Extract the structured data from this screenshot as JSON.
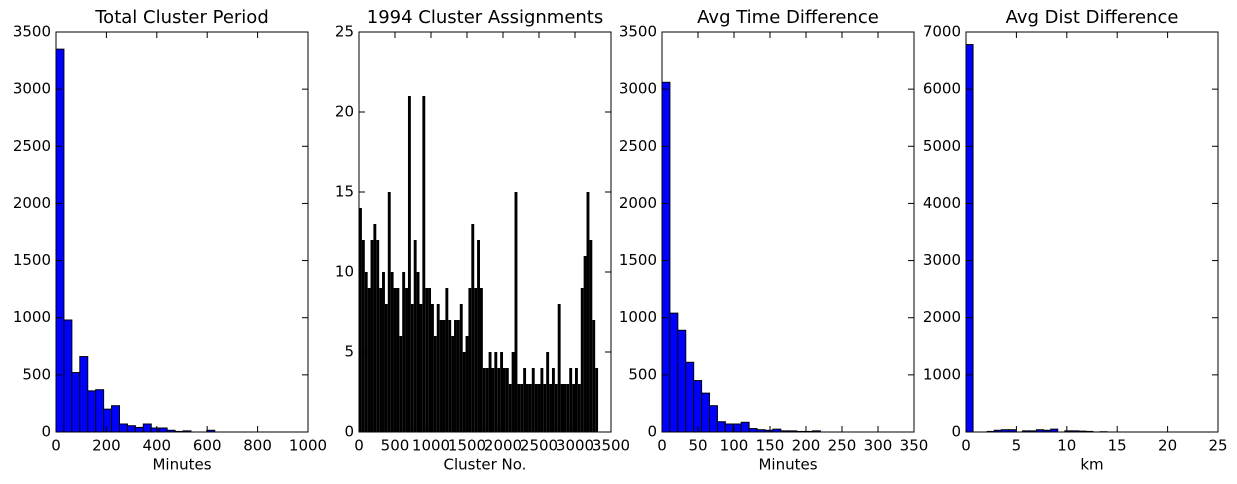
{
  "chart_data": [
    {
      "type": "histogram",
      "title": "Total Cluster Period",
      "x_label": "Minutes",
      "color": "#0000ff",
      "bins": [
        0,
        31.5,
        63,
        94.5,
        126,
        157.5,
        189,
        220.5,
        252,
        283.5,
        315,
        346.5,
        378,
        409.5,
        441,
        472.5,
        504,
        535.5,
        567,
        598.5,
        630
      ],
      "values": [
        3350,
        980,
        520,
        660,
        360,
        370,
        200,
        230,
        70,
        55,
        40,
        70,
        35,
        35,
        15,
        5,
        10,
        0,
        0,
        15
      ],
      "xlim": [
        0,
        1000
      ],
      "xticks": [
        0,
        200,
        400,
        600,
        800,
        1000
      ],
      "ylim": [
        0,
        3500
      ],
      "yticks": [
        0,
        500,
        1000,
        1500,
        2000,
        2500,
        3000,
        3500
      ]
    },
    {
      "type": "bar",
      "title": "1994 Cluster Assignments",
      "x_label": "Cluster No.",
      "color": "#000000",
      "x": [
        0,
        40,
        80,
        120,
        160,
        200,
        240,
        280,
        320,
        360,
        400,
        440,
        480,
        520,
        560,
        600,
        640,
        680,
        720,
        760,
        800,
        840,
        880,
        920,
        960,
        1000,
        1040,
        1080,
        1120,
        1160,
        1200,
        1240,
        1280,
        1320,
        1360,
        1400,
        1440,
        1480,
        1520,
        1560,
        1600,
        1640,
        1680,
        1720,
        1760,
        1800,
        1840,
        1880,
        1920,
        1960,
        2000,
        2040,
        2080,
        2120,
        2160,
        2200,
        2240,
        2280,
        2320,
        2360,
        2400,
        2440,
        2480,
        2520,
        2560,
        2600,
        2640,
        2680,
        2720,
        2760,
        2800,
        2840,
        2880,
        2920,
        2960,
        3000,
        3040,
        3080,
        3120,
        3160,
        3200,
        3240,
        3280
      ],
      "values": [
        14,
        12,
        10,
        9,
        12,
        13,
        12,
        9,
        10,
        8,
        15,
        10,
        9,
        9,
        6,
        10,
        9,
        21,
        8,
        12,
        10,
        8,
        21,
        9,
        9,
        8,
        6,
        8,
        7,
        7,
        9,
        7,
        6,
        7,
        7,
        8,
        5,
        6,
        9,
        13,
        9,
        12,
        9,
        4,
        4,
        5,
        4,
        5,
        4,
        5,
        4,
        4,
        3,
        5,
        15,
        3,
        3,
        4,
        3,
        3,
        4,
        3,
        3,
        4,
        3,
        5,
        3,
        4,
        3,
        8,
        3,
        3,
        3,
        4,
        3,
        4,
        3,
        9,
        11,
        15,
        12,
        7,
        4
      ],
      "xlim": [
        0,
        3500
      ],
      "xticks": [
        0,
        500,
        1000,
        1500,
        2000,
        2500,
        3000,
        3500
      ],
      "ylim": [
        0,
        25
      ],
      "yticks": [
        0,
        5,
        10,
        15,
        20,
        25
      ]
    },
    {
      "type": "histogram",
      "title": "Avg Time Difference",
      "x_label": "Minutes",
      "color": "#0000ff",
      "bins": [
        0,
        11,
        22,
        33,
        44,
        55,
        66,
        77,
        88,
        99,
        110,
        121,
        132,
        143,
        154,
        165,
        176,
        187,
        198,
        209,
        220
      ],
      "values": [
        3060,
        1040,
        890,
        610,
        450,
        340,
        230,
        90,
        70,
        70,
        85,
        30,
        20,
        15,
        25,
        10,
        10,
        5,
        5,
        10
      ],
      "xlim": [
        0,
        350
      ],
      "xticks": [
        0,
        50,
        100,
        150,
        200,
        250,
        300,
        350
      ],
      "ylim": [
        0,
        3500
      ],
      "yticks": [
        0,
        500,
        1000,
        1500,
        2000,
        2500,
        3000,
        3500
      ]
    },
    {
      "type": "histogram",
      "title": "Avg Dist Difference",
      "x_label": "km",
      "color": "#0000ff",
      "bins": [
        0,
        0.7,
        1.4,
        2.1,
        2.8,
        3.5,
        4.2,
        4.9,
        5.6,
        6.3,
        7,
        7.7,
        8.4,
        9.1,
        9.8,
        10.5,
        11.2,
        11.9,
        12.6,
        13.3,
        14
      ],
      "values": [
        6780,
        0,
        0,
        10,
        30,
        40,
        40,
        0,
        20,
        20,
        40,
        30,
        50,
        0,
        20,
        20,
        15,
        10,
        0,
        5
      ],
      "xlim": [
        0,
        25
      ],
      "xticks": [
        0,
        5,
        10,
        15,
        20,
        25
      ],
      "ylim": [
        0,
        7000
      ],
      "yticks": [
        0,
        1000,
        2000,
        3000,
        4000,
        5000,
        6000,
        7000
      ]
    }
  ]
}
